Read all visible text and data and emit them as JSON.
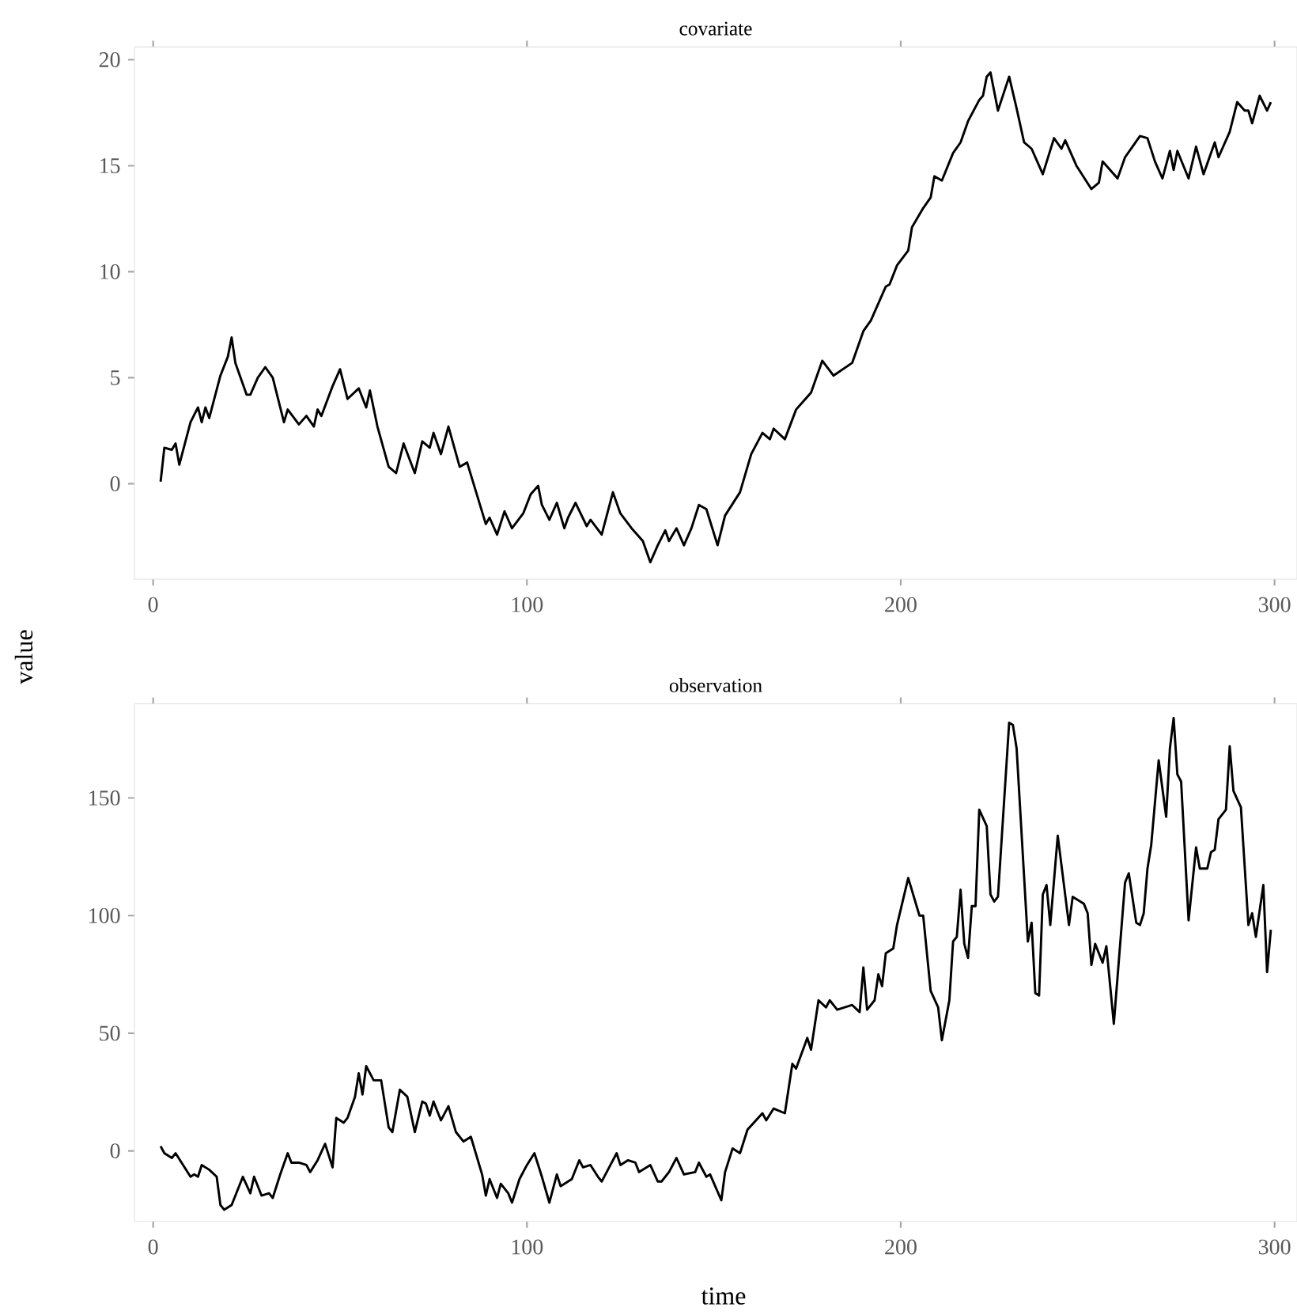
{
  "chart_data": [
    {
      "type": "line",
      "title": "covariate",
      "ylabel": "value",
      "xlim": [
        -5,
        306
      ],
      "ylim": [
        -4.5,
        20.6
      ],
      "xticks": [
        0,
        100,
        200,
        300
      ],
      "yticks": [
        0,
        5,
        10,
        15,
        20
      ],
      "series": [
        {
          "color": "#000000",
          "x": [
            2,
            3,
            5,
            6,
            7,
            10,
            12,
            13,
            14,
            15,
            18,
            20,
            21,
            22,
            25,
            26,
            28,
            30,
            32,
            35,
            36,
            39,
            41,
            43,
            44,
            45,
            48,
            50,
            52,
            55,
            57,
            58,
            60,
            63,
            65,
            67,
            70,
            72,
            74,
            75,
            77,
            79,
            82,
            84,
            89,
            90,
            92,
            94,
            96,
            99,
            101,
            103,
            104,
            106,
            108,
            110,
            111,
            113,
            116,
            117,
            120,
            123,
            125,
            128,
            131,
            133,
            135,
            137,
            138,
            140,
            142,
            144,
            146,
            148,
            151,
            153,
            157,
            160,
            163,
            165,
            166,
            169,
            172,
            176,
            179,
            182,
            187,
            190,
            192,
            196,
            197,
            199,
            202,
            203,
            206,
            208,
            209,
            211,
            214,
            216,
            218,
            221,
            222,
            223,
            224,
            226,
            229,
            231,
            233,
            235,
            237,
            238,
            241,
            243,
            244,
            247,
            251,
            253,
            254,
            256,
            258,
            260,
            262,
            264,
            266,
            268,
            270,
            272,
            273,
            274,
            277,
            279,
            281,
            284,
            285,
            288,
            290,
            292,
            293,
            294,
            296,
            298,
            299
          ],
          "values": [
            0.1,
            1.7,
            1.6,
            1.9,
            0.9,
            2.9,
            3.6,
            2.9,
            3.6,
            3.1,
            5.1,
            6.0,
            6.9,
            5.7,
            4.2,
            4.2,
            5.0,
            5.5,
            5.0,
            2.9,
            3.5,
            2.8,
            3.2,
            2.7,
            3.5,
            3.2,
            4.6,
            5.4,
            4.0,
            4.5,
            3.6,
            4.4,
            2.7,
            0.8,
            0.5,
            1.9,
            0.5,
            2.0,
            1.7,
            2.4,
            1.4,
            2.7,
            0.8,
            1.0,
            -1.9,
            -1.6,
            -2.4,
            -1.3,
            -2.1,
            -1.4,
            -0.5,
            -0.1,
            -1.0,
            -1.7,
            -0.9,
            -2.1,
            -1.6,
            -0.9,
            -2.0,
            -1.7,
            -2.4,
            -0.4,
            -1.4,
            -2.1,
            -2.7,
            -3.7,
            -2.9,
            -2.2,
            -2.7,
            -2.1,
            -2.9,
            -2.1,
            -1.0,
            -1.2,
            -2.9,
            -1.5,
            -0.4,
            1.4,
            2.4,
            2.1,
            2.6,
            2.1,
            3.5,
            4.3,
            5.8,
            5.1,
            5.7,
            7.2,
            7.7,
            9.3,
            9.4,
            10.3,
            11.0,
            12.1,
            13.0,
            13.5,
            14.5,
            14.3,
            15.6,
            16.1,
            17.1,
            18.1,
            18.3,
            19.2,
            19.4,
            17.6,
            19.2,
            17.7,
            16.1,
            15.8,
            15.0,
            14.6,
            16.3,
            15.8,
            16.2,
            15.0,
            13.9,
            14.2,
            15.2,
            14.8,
            14.4,
            15.4,
            15.9,
            16.4,
            16.3,
            15.2,
            14.4,
            15.7,
            14.8,
            15.7,
            14.4,
            15.9,
            14.6,
            16.1,
            15.4,
            16.6,
            18.0,
            17.6,
            17.6,
            17.0,
            18.3,
            17.6,
            18.0
          ]
        }
      ]
    },
    {
      "type": "line",
      "title": "observation",
      "xlabel": "time",
      "xlim": [
        -5,
        306
      ],
      "ylim": [
        -30,
        190
      ],
      "xticks": [
        0,
        100,
        200,
        300
      ],
      "yticks": [
        0,
        50,
        100,
        150
      ],
      "series": [
        {
          "color": "#000000",
          "x": [
            2,
            3,
            5,
            6,
            8,
            10,
            11,
            12,
            13,
            15,
            17,
            18,
            19,
            21,
            23,
            24,
            26,
            27,
            29,
            31,
            32,
            34,
            36,
            37,
            39,
            41,
            42,
            44,
            46,
            48,
            49,
            51,
            52,
            54,
            55,
            56,
            57,
            59,
            61,
            63,
            64,
            66,
            68,
            70,
            72,
            73,
            74,
            75,
            77,
            79,
            81,
            83,
            85,
            88,
            89,
            90,
            92,
            93,
            95,
            96,
            98,
            100,
            102,
            104,
            106,
            108,
            109,
            112,
            114,
            115,
            117,
            119,
            120,
            122,
            124,
            125,
            127,
            129,
            130,
            133,
            135,
            136,
            138,
            140,
            142,
            145,
            146,
            148,
            149,
            152,
            153,
            155,
            157,
            159,
            163,
            164,
            166,
            169,
            171,
            172,
            175,
            176,
            178,
            180,
            181,
            183,
            187,
            189,
            190,
            191,
            193,
            194,
            195,
            196,
            198,
            199,
            202,
            205,
            206,
            208,
            210,
            211,
            213,
            214,
            215,
            216,
            217,
            218,
            219,
            220,
            221,
            223,
            224,
            225,
            226,
            229,
            230,
            231,
            234,
            235,
            236,
            237,
            238,
            239,
            240,
            242,
            245,
            246,
            249,
            250,
            251,
            252,
            254,
            255,
            257,
            260,
            261,
            263,
            264,
            265,
            266,
            267,
            269,
            271,
            272,
            273,
            274,
            275,
            277,
            279,
            280,
            282,
            283,
            284,
            285,
            287,
            288,
            289,
            291,
            293,
            294,
            295,
            297,
            298,
            299
          ],
          "values": [
            2,
            -1,
            -3,
            -1,
            -6,
            -11,
            -10,
            -11,
            -6,
            -8,
            -11,
            -23,
            -25,
            -23,
            -15,
            -11,
            -18,
            -11,
            -19,
            -18,
            -20,
            -10,
            -1,
            -5,
            -5,
            -6,
            -9,
            -4,
            3,
            -7,
            14,
            12,
            14,
            23,
            33,
            24,
            36,
            30,
            30,
            10,
            8,
            26,
            23,
            8,
            21,
            20,
            15,
            21,
            13,
            19,
            8,
            4,
            6,
            -10,
            -19,
            -12,
            -20,
            -14,
            -18,
            -22,
            -12,
            -6,
            -1,
            -11,
            -22,
            -10,
            -15,
            -12,
            -4,
            -7,
            -6,
            -11,
            -13,
            -7,
            -1,
            -6,
            -4,
            -5,
            -9,
            -6,
            -13,
            -13,
            -9,
            -3,
            -10,
            -9,
            -5,
            -11,
            -10,
            -21,
            -9,
            1,
            -1,
            9,
            16,
            13,
            18,
            16,
            37,
            35,
            48,
            43,
            64,
            61,
            64,
            60,
            62,
            59,
            78,
            60,
            64,
            75,
            70,
            84,
            86,
            96,
            116,
            100,
            100,
            68,
            61,
            47,
            64,
            89,
            91,
            111,
            88,
            82,
            104,
            104,
            145,
            138,
            109,
            106,
            108,
            182,
            181,
            171,
            89,
            97,
            67,
            66,
            109,
            113,
            96,
            134,
            96,
            108,
            105,
            101,
            79,
            88,
            80,
            87,
            54,
            114,
            118,
            97,
            96,
            101,
            120,
            130,
            166,
            142,
            171,
            184,
            160,
            157,
            98,
            129,
            120,
            120,
            127,
            128,
            141,
            145,
            172,
            153,
            146,
            96,
            101,
            91,
            113,
            76,
            94
          ]
        }
      ]
    }
  ]
}
